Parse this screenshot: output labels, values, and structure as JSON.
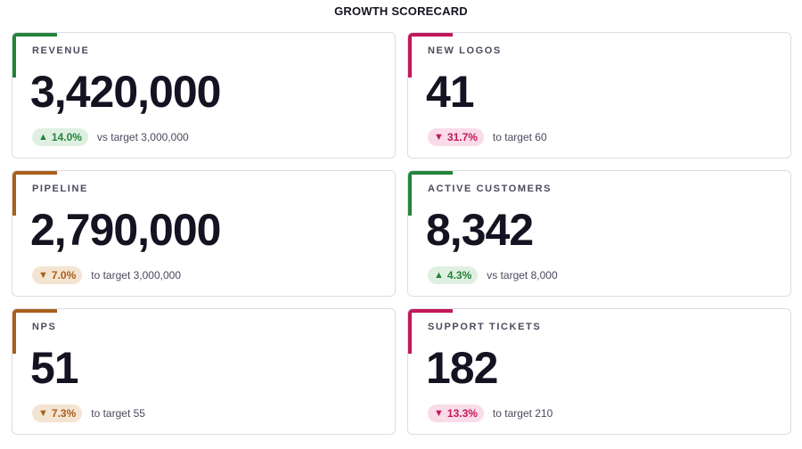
{
  "page": {
    "title": "GROWTH SCORECARD"
  },
  "colors": {
    "good": "#24843a",
    "good_bg": "#dff0e2",
    "warn": "#a8601a",
    "warn_bg": "#f4e4d2",
    "bad": "#c2185b",
    "bad_bg": "#f9dce8"
  },
  "cards": [
    {
      "label": "REVENUE",
      "value": "3,420,000",
      "direction": "up",
      "arrow": "▲",
      "delta": "14.0%",
      "comparison": "vs target 3,000,000",
      "status": "good",
      "accent_color": "#24843a"
    },
    {
      "label": "NEW LOGOS",
      "value": "41",
      "direction": "down",
      "arrow": "▼",
      "delta": "31.7%",
      "comparison": "to target 60",
      "status": "bad",
      "accent_color": "#c2185b"
    },
    {
      "label": "PIPELINE",
      "value": "2,790,000",
      "direction": "down",
      "arrow": "▼",
      "delta": "7.0%",
      "comparison": "to target 3,000,000",
      "status": "warn",
      "accent_color": "#a8601a"
    },
    {
      "label": "ACTIVE CUSTOMERS",
      "value": "8,342",
      "direction": "up",
      "arrow": "▲",
      "delta": "4.3%",
      "comparison": "vs target 8,000",
      "status": "good",
      "accent_color": "#24843a"
    },
    {
      "label": "NPS",
      "value": "51",
      "direction": "down",
      "arrow": "▼",
      "delta": "7.3%",
      "comparison": "to target 55",
      "status": "warn",
      "accent_color": "#a8601a"
    },
    {
      "label": "SUPPORT TICKETS",
      "value": "182",
      "direction": "down",
      "arrow": "▼",
      "delta": "13.3%",
      "comparison": "to target 210",
      "status": "bad",
      "accent_color": "#c2185b"
    }
  ],
  "chart_data": {
    "type": "table",
    "title": "GROWTH SCORECARD",
    "columns": [
      "metric",
      "value",
      "delta_pct",
      "direction",
      "comparison"
    ],
    "rows": [
      [
        "REVENUE",
        3420000,
        14.0,
        "up",
        "vs target 3,000,000"
      ],
      [
        "NEW LOGOS",
        41,
        31.7,
        "down",
        "to target 60"
      ],
      [
        "PIPELINE",
        2790000,
        7.0,
        "down",
        "to target 3,000,000"
      ],
      [
        "ACTIVE CUSTOMERS",
        8342,
        4.3,
        "up",
        "vs target 8,000"
      ],
      [
        "NPS",
        51,
        7.3,
        "down",
        "to target 55"
      ],
      [
        "SUPPORT TICKETS",
        182,
        13.3,
        "down",
        "to target 210"
      ]
    ]
  }
}
